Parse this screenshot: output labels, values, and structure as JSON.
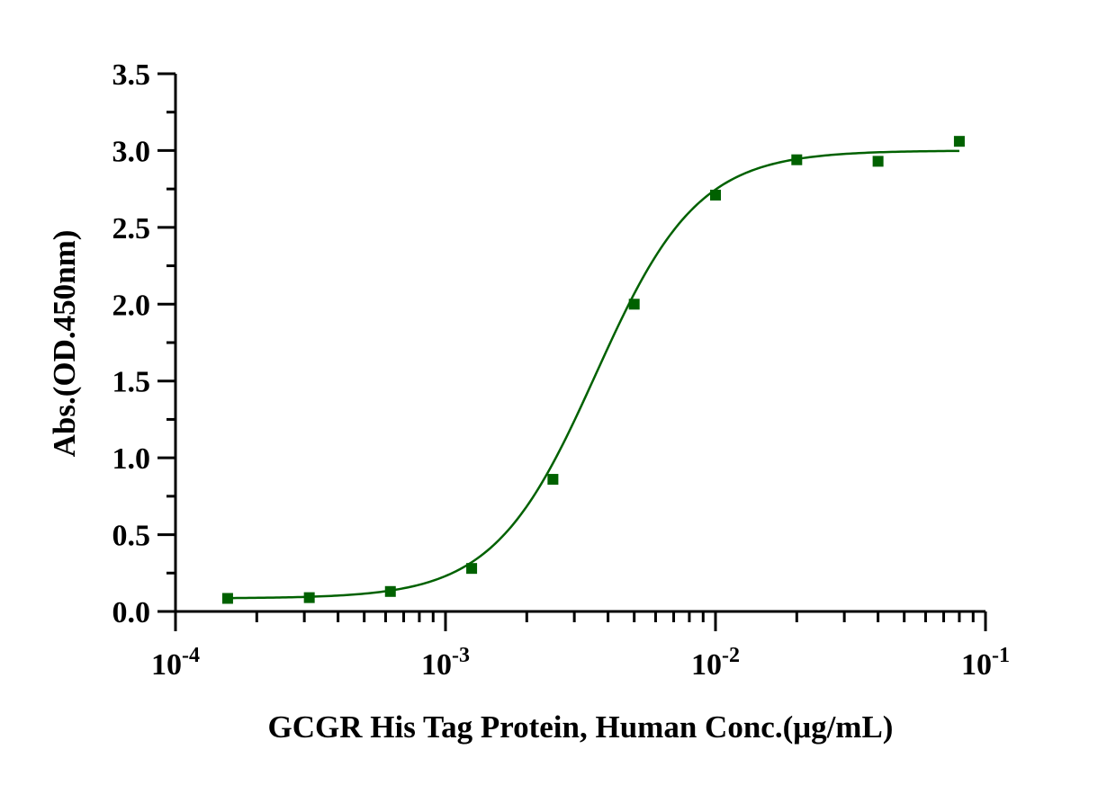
{
  "chart_data": {
    "type": "scatter",
    "title": "",
    "xlabel": "GCGR His Tag Protein, Human Conc.(μg/mL)",
    "ylabel": "Abs.(OD.450nm)",
    "xscale": "log",
    "xlim": [
      0.0001,
      0.1
    ],
    "ylim": [
      0.0,
      3.5
    ],
    "grid": false,
    "x_tick_labels": [
      {
        "base": "10",
        "exp": "-4"
      },
      {
        "base": "10",
        "exp": "-3"
      },
      {
        "base": "10",
        "exp": "-2"
      },
      {
        "base": "10",
        "exp": "-1"
      }
    ],
    "y_tick_labels": [
      "0.0",
      "0.5",
      "1.0",
      "1.5",
      "2.0",
      "2.5",
      "3.0",
      "3.5"
    ],
    "series": [
      {
        "marker": "square",
        "color": "#006100",
        "x": [
          0.000156,
          0.000313,
          0.000625,
          0.00125,
          0.0025,
          0.005,
          0.01,
          0.02,
          0.04,
          0.08
        ],
        "y": [
          0.085,
          0.09,
          0.13,
          0.28,
          0.86,
          2.0,
          2.71,
          2.94,
          2.93,
          3.06
        ],
        "fit": {
          "model": "four-parameter logistic",
          "bottom": 0.085,
          "top": 3.0,
          "ec50": 0.0036,
          "hill": 2.3,
          "color": "#006100"
        }
      }
    ]
  }
}
